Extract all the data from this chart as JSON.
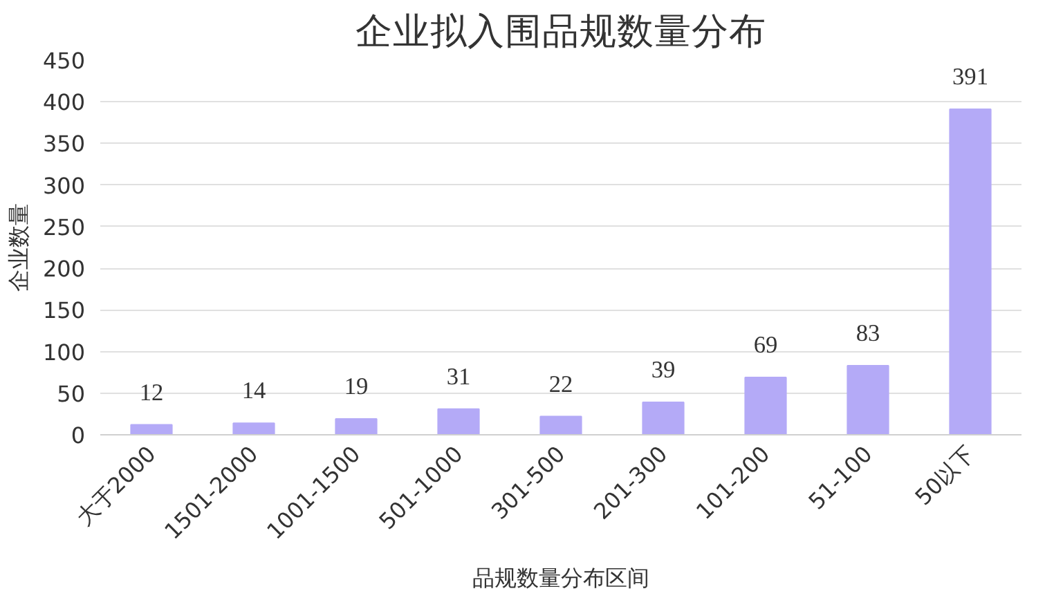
{
  "chart_data": {
    "type": "bar",
    "title": "企业拟入围品规数量分布",
    "xlabel": "品规数量分布区间",
    "ylabel": "企业数量",
    "categories": [
      "大于2000",
      "1501-2000",
      "1001-1500",
      "501-1000",
      "301-500",
      "201-300",
      "101-200",
      "51-100",
      "50以下"
    ],
    "values": [
      12,
      14,
      19,
      31,
      22,
      39,
      69,
      83,
      391
    ],
    "color": "#b4aaf7",
    "ylim": [
      0,
      450
    ],
    "yticks": [
      0,
      50,
      100,
      150,
      200,
      250,
      300,
      350,
      400,
      450
    ],
    "grid": "y",
    "data_labels": true
  }
}
